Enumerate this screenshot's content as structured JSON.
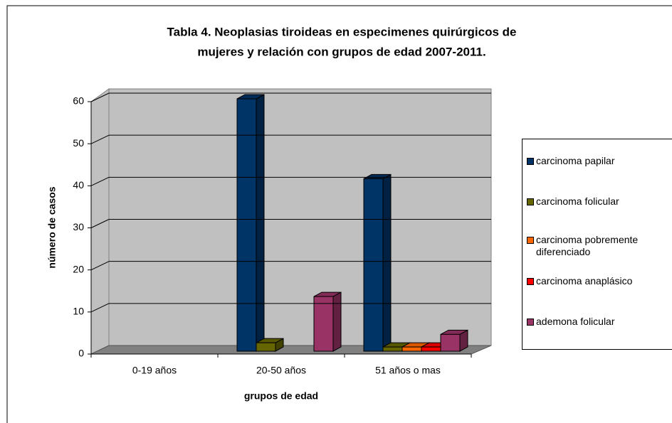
{
  "chart_data": {
    "type": "bar3d",
    "title": [
      "Tabla 4. Neoplasias tiroideas en especimenes quirúrgicos de",
      "mujeres y relación con grupos de edad 2007-2011."
    ],
    "x_label": "grupos de edad",
    "y_label": "número de casos",
    "categories": [
      "0-19 años",
      "20-50 años",
      "51 años o mas"
    ],
    "series": [
      {
        "name": "carcinoma papilar",
        "color": "#003366",
        "values": [
          0,
          60,
          41
        ]
      },
      {
        "name": "carcinoma folicular",
        "color": "#666600",
        "values": [
          0,
          2,
          1
        ]
      },
      {
        "name": "carcinoma pobremente diferenciado",
        "color": "#ff6600",
        "values": [
          0,
          0,
          1
        ]
      },
      {
        "name": "carcinoma anaplásico",
        "color": "#ff0000",
        "values": [
          0,
          0,
          1
        ]
      },
      {
        "name": "ademona folicular",
        "color": "#993366",
        "values": [
          0,
          13,
          4
        ]
      }
    ],
    "ylim": [
      0,
      60
    ],
    "yticks": [
      0,
      10,
      20,
      30,
      40,
      50,
      60
    ],
    "grid": true,
    "legend": "right"
  }
}
